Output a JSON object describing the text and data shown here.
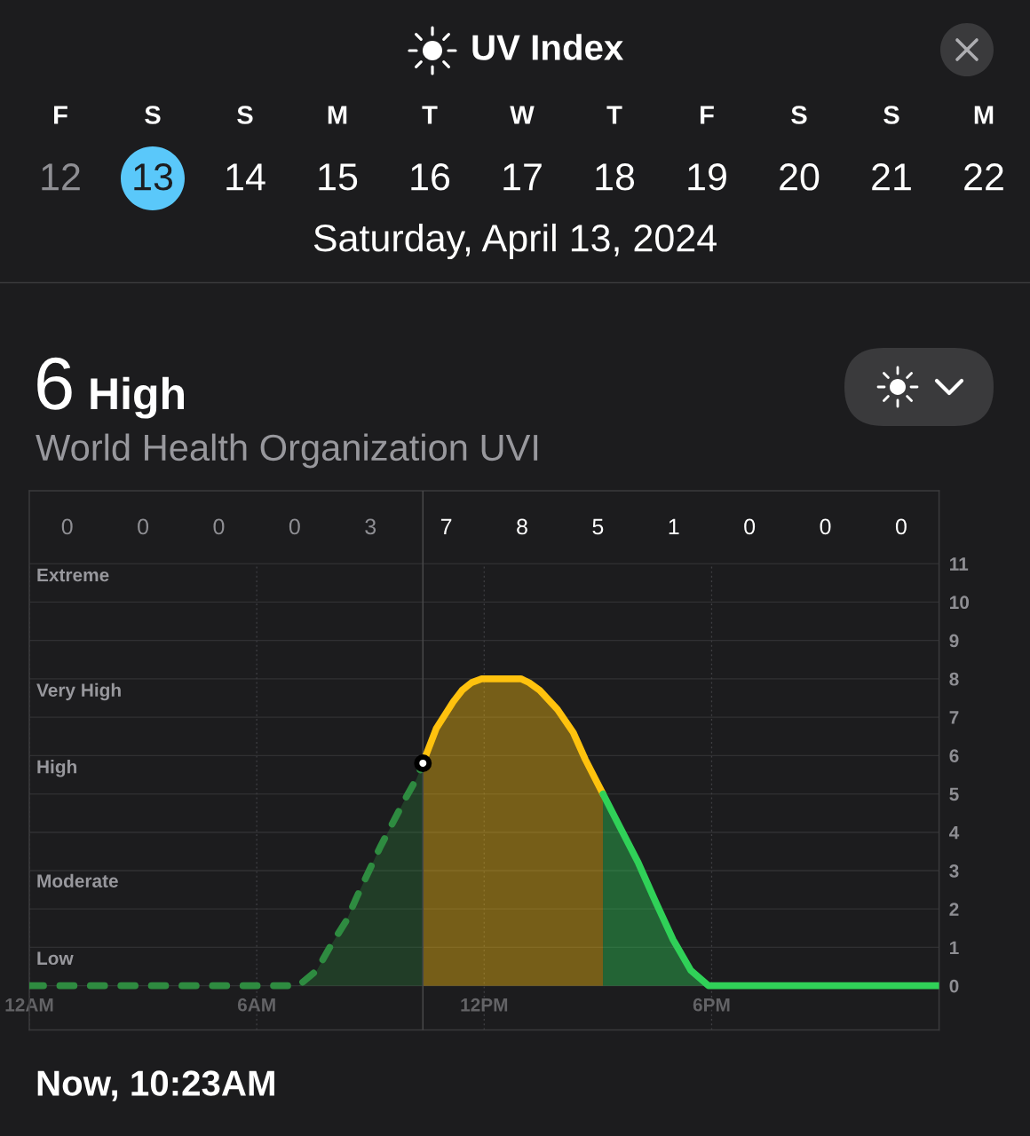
{
  "chart_data": {
    "type": "area",
    "title": "UV Index",
    "subtitle": "Saturday, April 13, 2024",
    "xlim": [
      "2024-04-13T00:00",
      "2024-04-14T00:00"
    ],
    "xticks": [
      {
        "value": "2024-04-13T00:00",
        "label": "12AM"
      },
      {
        "value": "2024-04-13T06:00",
        "label": "6AM"
      },
      {
        "value": "2024-04-13T12:00",
        "label": "12PM"
      },
      {
        "value": "2024-04-13T18:00",
        "label": "6PM"
      }
    ],
    "ylim": [
      -1.15,
      12.9
    ],
    "yticks": [
      0,
      1,
      2,
      3,
      4,
      5,
      6,
      7,
      8,
      9,
      10,
      11
    ],
    "grid": true,
    "ref_lines": [
      {
        "axis": "x",
        "value": "2024-04-13T10:23",
        "color": "#48484a"
      }
    ],
    "series": [
      {
        "line_style": "dashed",
        "color": "#2e8b40",
        "x": [
          "2024-04-13T00:00",
          "2024-04-13T07:06",
          "2024-04-13T07:35",
          "2024-04-13T07:59",
          "2024-04-13T08:22",
          "2024-04-13T08:38",
          "2024-04-13T08:55",
          "2024-04-13T09:15",
          "2024-04-13T09:37",
          "2024-04-13T09:56",
          "2024-04-13T10:13",
          "2024-04-13T10:23"
        ],
        "values": [
          0,
          0,
          0.4,
          1.1,
          1.7,
          2.3,
          2.9,
          3.6,
          4.3,
          4.9,
          5.4,
          5.8
        ]
      },
      {
        "color": "#ffc20e",
        "x": [
          "2024-04-13T10:23",
          "2024-04-13T10:44",
          "2024-04-13T11:11",
          "2024-04-13T11:25",
          "2024-04-13T11:40",
          "2024-04-13T11:56",
          "2024-04-13T12:58",
          "2024-04-13T13:11",
          "2024-04-13T13:28",
          "2024-04-13T13:56",
          "2024-04-13T14:21",
          "2024-04-13T14:40",
          "2024-04-13T15:08"
        ],
        "values": [
          5.8,
          6.7,
          7.4,
          7.7,
          7.9,
          8,
          8,
          7.9,
          7.7,
          7.2,
          6.6,
          5.9,
          5.0
        ]
      },
      {
        "color": "#30d158",
        "x": [
          "2024-04-13T15:08",
          "2024-04-13T15:36",
          "2024-04-13T16:04",
          "2024-04-13T16:31",
          "2024-04-13T16:59",
          "2024-04-13T17:27",
          "2024-04-13T17:55",
          "2024-04-14T00:00"
        ],
        "values": [
          5.0,
          4.1,
          3.2,
          2.2,
          1.2,
          0.4,
          0,
          0
        ]
      },
      {
        "type": "scatter",
        "marker": "circle",
        "color": "#ffffff",
        "x": [
          "2024-04-13T10:23"
        ],
        "values": [
          5.8
        ]
      }
    ],
    "annotations": [
      "F",
      "S",
      "S",
      "M",
      "T",
      "W",
      "T",
      "F",
      "S",
      "S",
      "M",
      "12",
      "13",
      "14",
      "15",
      "16",
      "17",
      "18",
      "19",
      "20",
      "21",
      "22",
      "6",
      "High",
      "World Health Organization UVI",
      "Now, 10:23AM",
      "Extreme",
      "Very High",
      "High",
      "Moderate",
      "Low",
      "0",
      "0",
      "0",
      "0",
      "3",
      "7",
      "8",
      "5",
      "1",
      "0",
      "0",
      "0"
    ]
  }
}
